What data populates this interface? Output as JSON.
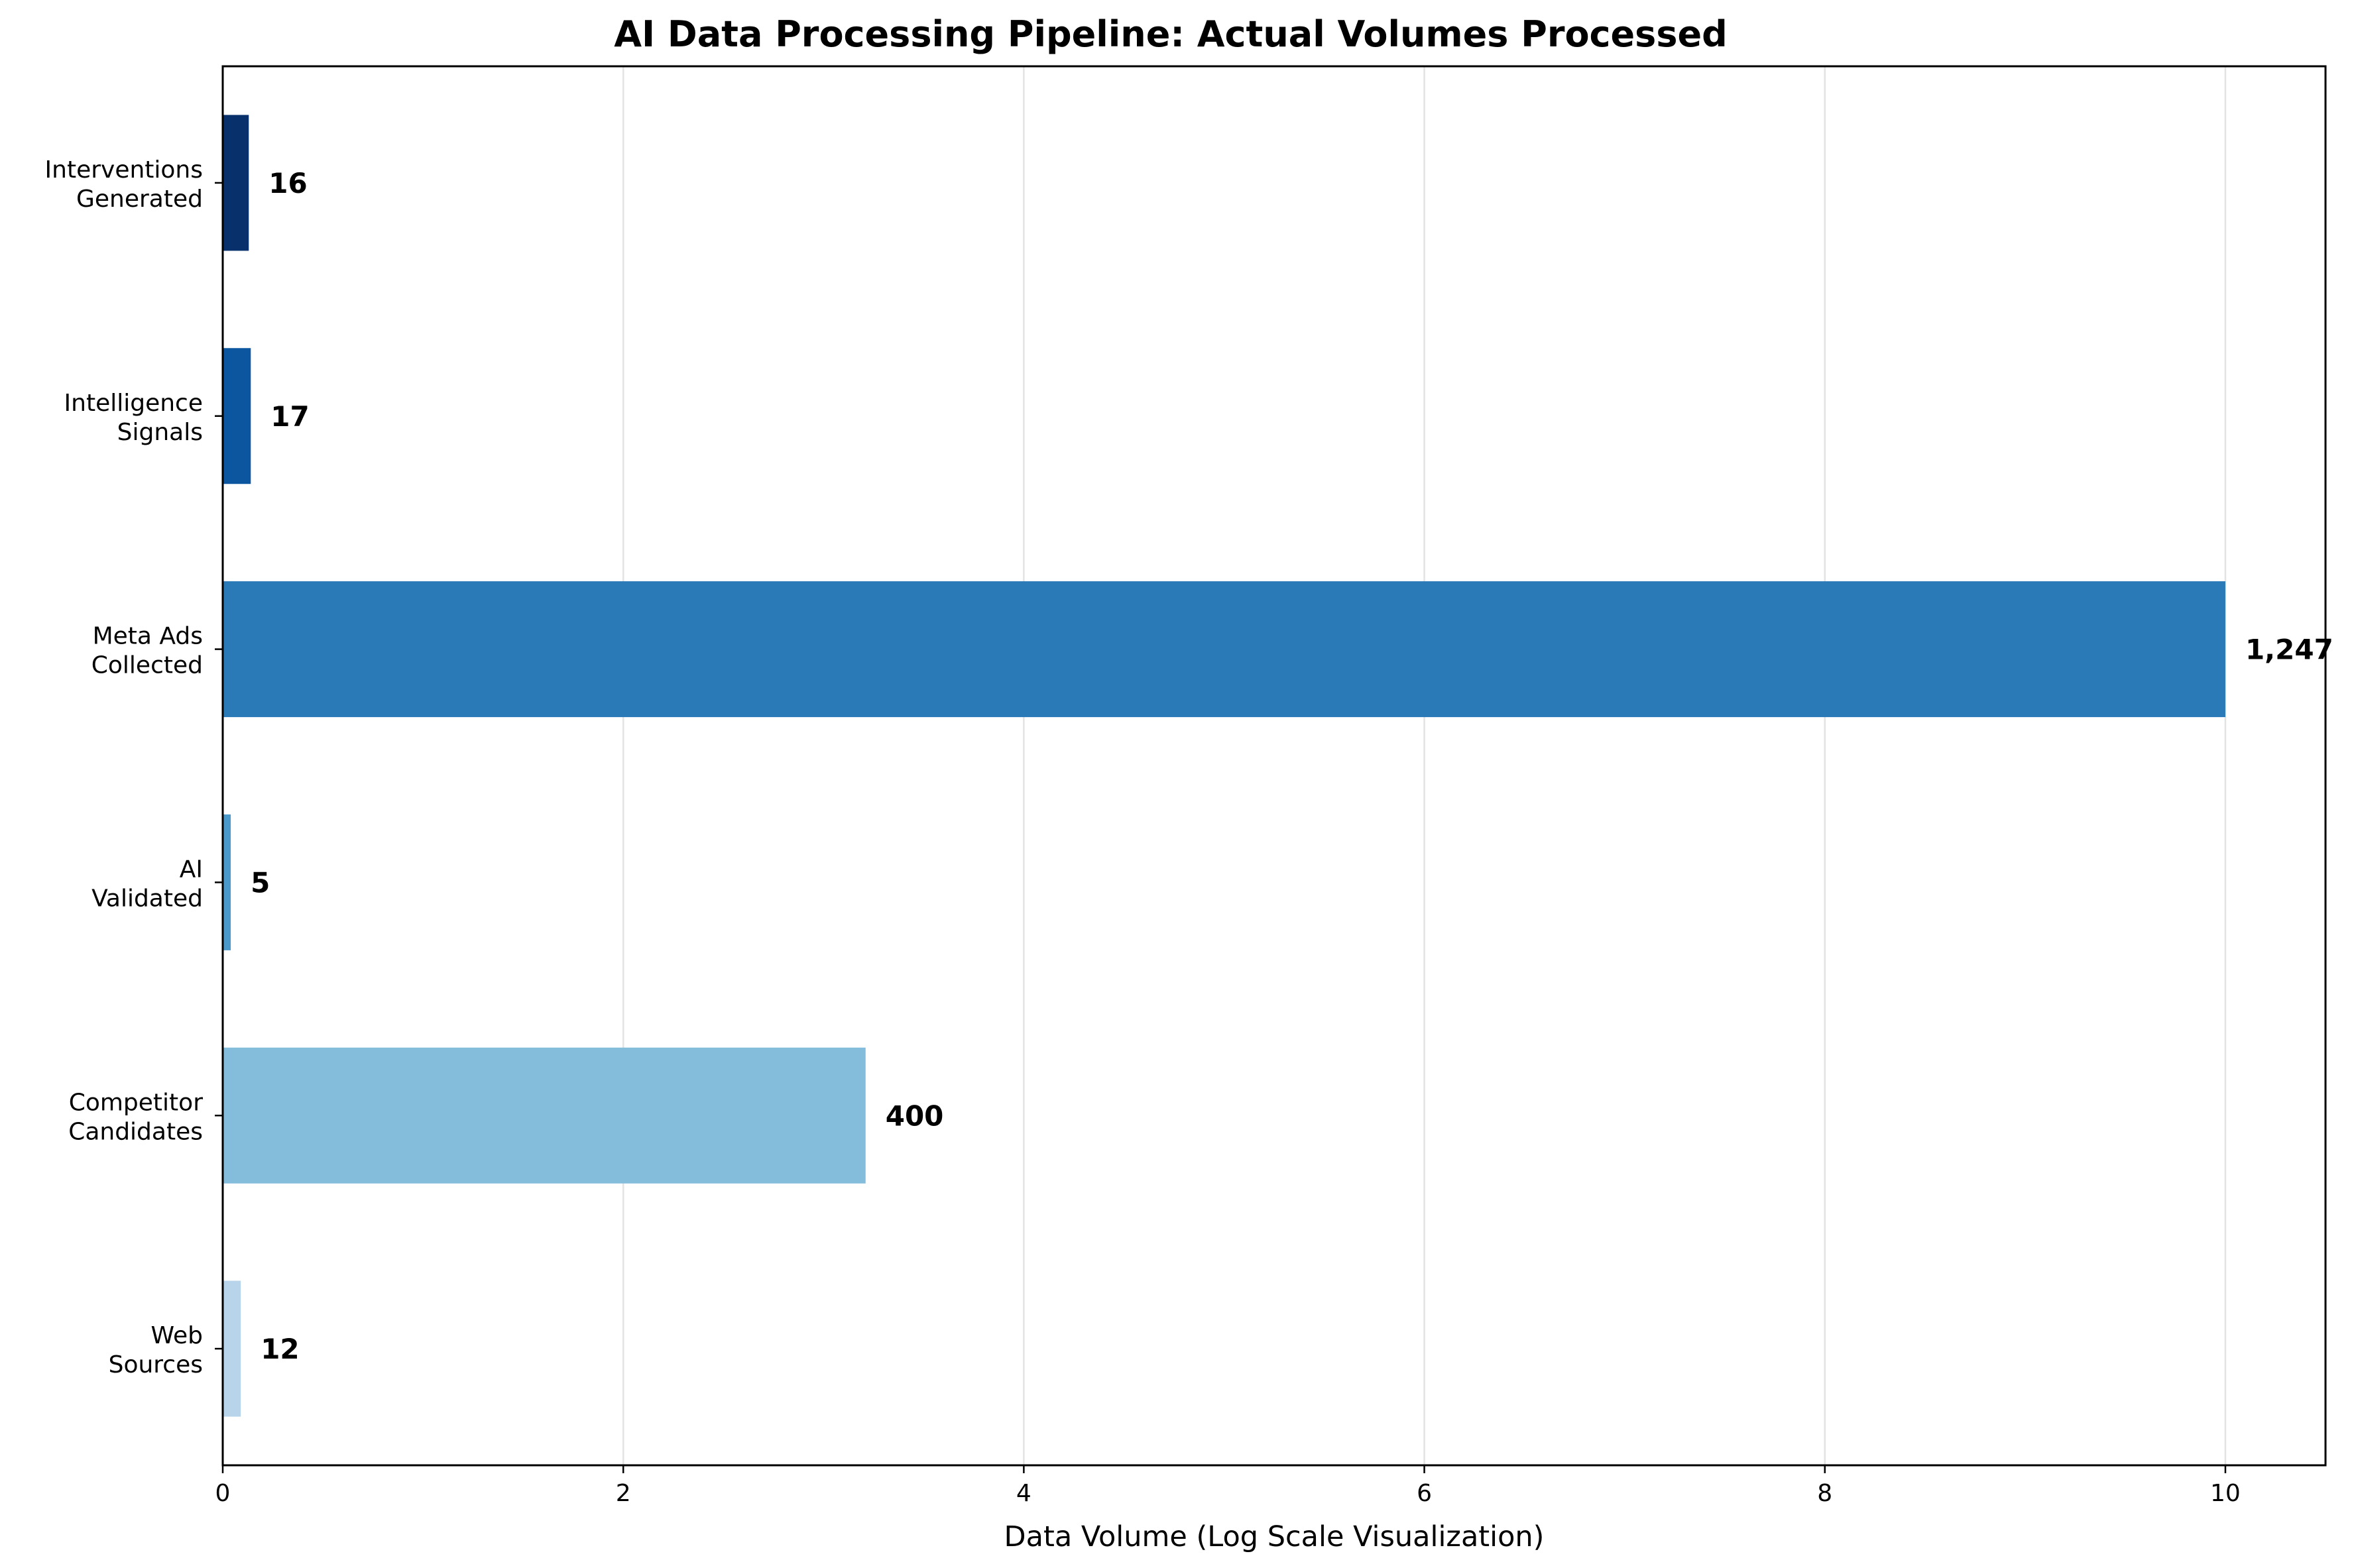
{
  "chart_data": {
    "type": "bar",
    "orientation": "horizontal",
    "title": "AI Data Processing Pipeline: Actual Volumes Processed",
    "xlabel": "Data Volume (Log Scale Visualization)",
    "ylabel": "",
    "xlim": [
      0,
      10.5
    ],
    "xticks": [
      "0",
      "2",
      "4",
      "6",
      "8",
      "10"
    ],
    "grid": "x",
    "categories": [
      {
        "line1": "Web",
        "line2": "Sources"
      },
      {
        "line1": "Competitor",
        "line2": "Candidates"
      },
      {
        "line1": "AI",
        "line2": "Validated"
      },
      {
        "line1": "Meta Ads",
        "line2": "Collected"
      },
      {
        "line1": "Intelligence",
        "line2": "Signals"
      },
      {
        "line1": "Interventions",
        "line2": "Generated"
      }
    ],
    "values": [
      0.09,
      3.21,
      0.04,
      10.0,
      0.14,
      0.13
    ],
    "value_labels": [
      "12",
      "400",
      "5",
      "1,247",
      "17",
      "16"
    ],
    "colors": [
      "#b7d4ea",
      "#84bcdb",
      "#4b98ca",
      "#2a7ab8",
      "#0c56a0",
      "#08306b"
    ]
  }
}
